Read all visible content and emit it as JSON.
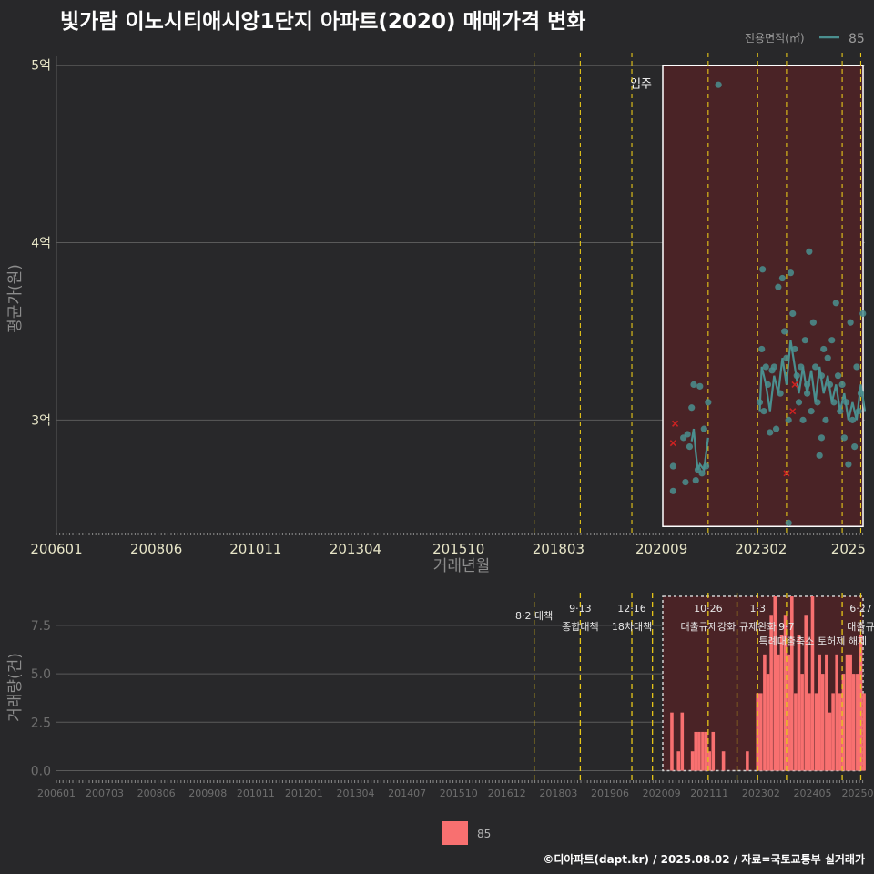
{
  "title": "빛가람 이노시티애시앙1단지 아파트(2020) 매매가격 변화",
  "credit": "©디아파트(dapt.kr) / 2025.08.02 / 자료=국토교통부 실거래가",
  "colors": {
    "background": "#28282a",
    "grid": "#5a5a5a",
    "series": "#4a8f8f",
    "marker": "#cc2222",
    "bar": "#f87070",
    "policy": "#e6c619",
    "highlight_fill": "#4a2326",
    "tick_text": "#e8e6c8"
  },
  "chart_data": [
    {
      "type": "scatter",
      "id": "price",
      "ylabel": "평균가(원)",
      "xlabel": "거래년월",
      "legend_title": "전용면적(㎡)",
      "legend_label": "85",
      "xlim": [
        2006.0,
        2025.6
      ],
      "ylim": [
        2.35,
        5.05
      ],
      "y_ticks": [
        {
          "v": 3,
          "label": "3억"
        },
        {
          "v": 4,
          "label": "4억"
        },
        {
          "v": 5,
          "label": "5억"
        }
      ],
      "x_ticks": [
        {
          "v": 2006.0,
          "label": "200601"
        },
        {
          "v": 2008.42,
          "label": "200806"
        },
        {
          "v": 2010.83,
          "label": "201011"
        },
        {
          "v": 2013.25,
          "label": "201304"
        },
        {
          "v": 2015.75,
          "label": "201510"
        },
        {
          "v": 2018.17,
          "label": "201803"
        },
        {
          "v": 2020.67,
          "label": "202009"
        },
        {
          "v": 2023.08,
          "label": "202302"
        },
        {
          "v": 2025.2,
          "label": "2025"
        }
      ],
      "highlight": {
        "x0": 2020.7,
        "x1": 2025.6,
        "y0": 2.4,
        "y1": 5.0,
        "label": "입주"
      },
      "policy_lines": [
        2017.58,
        2018.7,
        2019.95,
        2021.8,
        2023.0,
        2023.7,
        2025.05,
        2025.5
      ],
      "points": [
        [
          2020.95,
          2.6
        ],
        [
          2020.95,
          2.74
        ],
        [
          2021.2,
          2.9
        ],
        [
          2021.25,
          2.65
        ],
        [
          2021.3,
          2.92
        ],
        [
          2021.35,
          2.85
        ],
        [
          2021.4,
          3.07
        ],
        [
          2021.45,
          3.2
        ],
        [
          2021.5,
          2.66
        ],
        [
          2021.55,
          2.72
        ],
        [
          2021.6,
          3.19
        ],
        [
          2021.65,
          2.7
        ],
        [
          2021.7,
          2.95
        ],
        [
          2021.75,
          2.74
        ],
        [
          2021.8,
          3.1
        ],
        [
          2022.05,
          4.89
        ],
        [
          2023.05,
          3.1
        ],
        [
          2023.1,
          3.4
        ],
        [
          2023.12,
          3.85
        ],
        [
          2023.15,
          3.05
        ],
        [
          2023.2,
          3.3
        ],
        [
          2023.25,
          3.2
        ],
        [
          2023.3,
          2.93
        ],
        [
          2023.35,
          3.28
        ],
        [
          2023.4,
          3.3
        ],
        [
          2023.45,
          2.95
        ],
        [
          2023.5,
          3.75
        ],
        [
          2023.55,
          3.15
        ],
        [
          2023.6,
          3.8
        ],
        [
          2023.65,
          3.5
        ],
        [
          2023.7,
          3.35
        ],
        [
          2023.75,
          3.0
        ],
        [
          2023.8,
          3.83
        ],
        [
          2023.85,
          3.6
        ],
        [
          2023.9,
          3.4
        ],
        [
          2023.95,
          3.25
        ],
        [
          2024.0,
          3.1
        ],
        [
          2024.05,
          3.3
        ],
        [
          2024.1,
          3.0
        ],
        [
          2024.15,
          3.45
        ],
        [
          2024.2,
          3.2
        ],
        [
          2024.25,
          3.95
        ],
        [
          2024.3,
          3.05
        ],
        [
          2024.35,
          3.55
        ],
        [
          2024.4,
          3.3
        ],
        [
          2024.45,
          3.1
        ],
        [
          2024.5,
          2.8
        ],
        [
          2024.55,
          3.25
        ],
        [
          2024.6,
          3.4
        ],
        [
          2024.65,
          3.0
        ],
        [
          2024.7,
          3.35
        ],
        [
          2024.75,
          3.2
        ],
        [
          2024.8,
          3.45
        ],
        [
          2024.85,
          3.1
        ],
        [
          2024.9,
          3.66
        ],
        [
          2024.95,
          3.25
        ],
        [
          2025.0,
          3.05
        ],
        [
          2025.05,
          3.2
        ],
        [
          2025.1,
          2.9
        ],
        [
          2025.15,
          3.1
        ],
        [
          2025.2,
          2.75
        ],
        [
          2025.25,
          3.55
        ],
        [
          2025.3,
          3.0
        ],
        [
          2025.35,
          2.85
        ],
        [
          2025.4,
          3.3
        ],
        [
          2025.45,
          3.05
        ],
        [
          2025.5,
          3.15
        ],
        [
          2025.55,
          3.6
        ],
        [
          2023.75,
          2.42
        ],
        [
          2024.55,
          2.9
        ],
        [
          2024.2,
          3.15
        ]
      ],
      "line": [
        [
          2021.4,
          2.88
        ],
        [
          2021.45,
          2.95
        ],
        [
          2021.5,
          2.82
        ],
        [
          2021.55,
          2.72
        ],
        [
          2021.6,
          2.75
        ],
        [
          2021.7,
          2.72
        ],
        [
          2021.8,
          2.9
        ],
        [
          2023.05,
          3.05
        ],
        [
          2023.1,
          3.3
        ],
        [
          2023.2,
          3.2
        ],
        [
          2023.3,
          3.05
        ],
        [
          2023.4,
          3.25
        ],
        [
          2023.5,
          3.15
        ],
        [
          2023.6,
          3.35
        ],
        [
          2023.7,
          3.2
        ],
        [
          2023.8,
          3.45
        ],
        [
          2023.9,
          3.3
        ],
        [
          2024.0,
          3.15
        ],
        [
          2024.1,
          3.3
        ],
        [
          2024.2,
          3.15
        ],
        [
          2024.3,
          3.28
        ],
        [
          2024.4,
          3.1
        ],
        [
          2024.5,
          3.3
        ],
        [
          2024.6,
          3.15
        ],
        [
          2024.7,
          3.25
        ],
        [
          2024.8,
          3.1
        ],
        [
          2024.9,
          3.2
        ],
        [
          2025.0,
          3.05
        ],
        [
          2025.1,
          3.15
        ],
        [
          2025.2,
          3.0
        ],
        [
          2025.3,
          3.1
        ],
        [
          2025.4,
          3.0
        ],
        [
          2025.5,
          3.2
        ],
        [
          2025.6,
          3.05
        ]
      ],
      "markers": [
        [
          2020.95,
          2.87
        ],
        [
          2021.0,
          2.98
        ],
        [
          2023.7,
          2.7
        ],
        [
          2023.85,
          3.05
        ],
        [
          2023.9,
          3.2
        ]
      ]
    },
    {
      "type": "bar",
      "id": "volume",
      "ylabel": "거래량(건)",
      "xlim": [
        2006.0,
        2025.6
      ],
      "ylim": [
        -0.4,
        9
      ],
      "y_ticks": [
        {
          "v": 0,
          "label": "0.0"
        },
        {
          "v": 2.5,
          "label": "2.5"
        },
        {
          "v": 5,
          "label": "5.0"
        },
        {
          "v": 7.5,
          "label": "7.5"
        }
      ],
      "x_ticks": [
        {
          "v": 2006.0,
          "label": "200601"
        },
        {
          "v": 2007.17,
          "label": "200703"
        },
        {
          "v": 2008.42,
          "label": "200806"
        },
        {
          "v": 2009.67,
          "label": "200908"
        },
        {
          "v": 2010.83,
          "label": "201011"
        },
        {
          "v": 2012.0,
          "label": "201201"
        },
        {
          "v": 2013.25,
          "label": "201304"
        },
        {
          "v": 2014.5,
          "label": "201407"
        },
        {
          "v": 2015.75,
          "label": "201510"
        },
        {
          "v": 2016.92,
          "label": "201612"
        },
        {
          "v": 2018.17,
          "label": "201803"
        },
        {
          "v": 2019.42,
          "label": "201906"
        },
        {
          "v": 2020.67,
          "label": "202009"
        },
        {
          "v": 2021.83,
          "label": "202111"
        },
        {
          "v": 2023.08,
          "label": "202302"
        },
        {
          "v": 2024.33,
          "label": "202405"
        },
        {
          "v": 2025.5,
          "label": "202508"
        }
      ],
      "highlight": {
        "x0": 2020.7,
        "x1": 2025.6,
        "y0": 0,
        "y1": 9
      },
      "policy_lines": [
        2017.58,
        2018.7,
        2019.95,
        2020.45,
        2021.8,
        2022.5,
        2023.0,
        2023.7,
        2025.05,
        2025.5
      ],
      "policy_labels": [
        {
          "x": 2017.58,
          "row": 1,
          "text": "8·2 대책"
        },
        {
          "x": 2018.7,
          "row": 0,
          "text": "9·13"
        },
        {
          "x": 2018.7,
          "row": 2,
          "text": "종합대책"
        },
        {
          "x": 2019.95,
          "row": 0,
          "text": "12·16"
        },
        {
          "x": 2019.95,
          "row": 2,
          "text": "18차대책"
        },
        {
          "x": 2021.8,
          "row": 0,
          "text": "10·26"
        },
        {
          "x": 2021.8,
          "row": 2,
          "text": "대출규제강화"
        },
        {
          "x": 2023.0,
          "row": 0,
          "text": "1·3"
        },
        {
          "x": 2023.0,
          "row": 2,
          "text": "규제완화"
        },
        {
          "x": 2023.7,
          "row": 2,
          "text": "9·7"
        },
        {
          "x": 2023.7,
          "row": 3,
          "text": "특례대출축소"
        },
        {
          "x": 2025.05,
          "row": 3,
          "text": "토허제 해제"
        },
        {
          "x": 2025.5,
          "row": 0,
          "text": "6·27"
        },
        {
          "x": 2025.5,
          "row": 2,
          "text": "대출규"
        }
      ],
      "legend_label": "85",
      "bars": [
        [
          2020.92,
          3
        ],
        [
          2021.08,
          1
        ],
        [
          2021.17,
          3
        ],
        [
          2021.42,
          1
        ],
        [
          2021.5,
          2
        ],
        [
          2021.58,
          2
        ],
        [
          2021.67,
          2
        ],
        [
          2021.75,
          2
        ],
        [
          2021.83,
          1
        ],
        [
          2021.92,
          2
        ],
        [
          2022.17,
          1
        ],
        [
          2022.75,
          1
        ],
        [
          2023.0,
          4
        ],
        [
          2023.08,
          4
        ],
        [
          2023.17,
          6
        ],
        [
          2023.25,
          5
        ],
        [
          2023.33,
          8
        ],
        [
          2023.42,
          9
        ],
        [
          2023.5,
          6
        ],
        [
          2023.58,
          7
        ],
        [
          2023.67,
          8
        ],
        [
          2023.75,
          6
        ],
        [
          2023.83,
          9
        ],
        [
          2023.92,
          4
        ],
        [
          2024.0,
          7
        ],
        [
          2024.08,
          5
        ],
        [
          2024.17,
          8
        ],
        [
          2024.25,
          4
        ],
        [
          2024.33,
          9
        ],
        [
          2024.42,
          4
        ],
        [
          2024.5,
          6
        ],
        [
          2024.58,
          5
        ],
        [
          2024.67,
          6
        ],
        [
          2024.75,
          3
        ],
        [
          2024.83,
          4
        ],
        [
          2024.92,
          6
        ],
        [
          2025.0,
          4
        ],
        [
          2025.08,
          5
        ],
        [
          2025.17,
          6
        ],
        [
          2025.25,
          6
        ],
        [
          2025.33,
          5
        ],
        [
          2025.42,
          5
        ],
        [
          2025.5,
          7
        ],
        [
          2025.58,
          4
        ]
      ]
    }
  ]
}
